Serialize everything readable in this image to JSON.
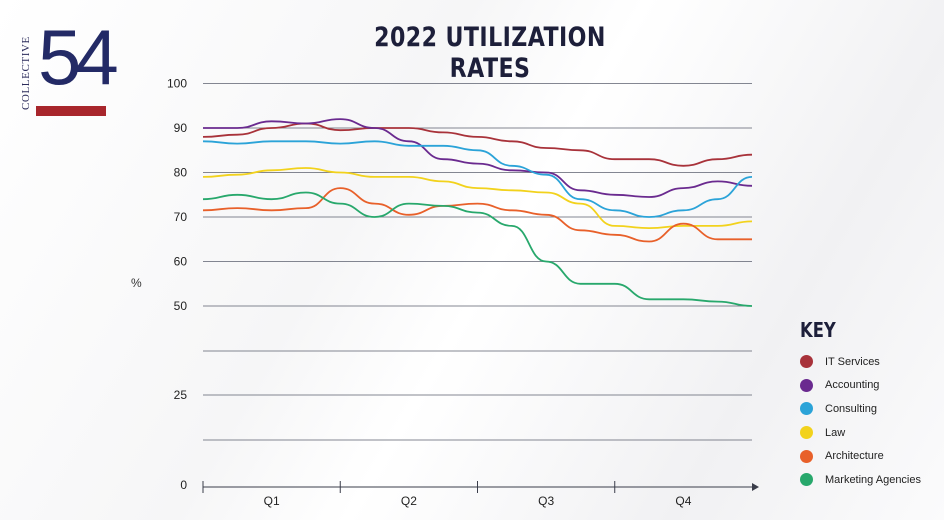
{
  "brand": {
    "word": "COLLECTIVE",
    "number": "54"
  },
  "chart_data": {
    "type": "line",
    "title": "2022 UTILIZATION RATES",
    "xlabel": "",
    "ylabel": "%",
    "y_ticks": [
      100,
      90,
      80,
      70,
      60,
      50,
      25,
      0
    ],
    "y_scale": "piecewise: 50-100 linear upper band, 0-50 compressed lower band",
    "ylim": [
      0,
      100
    ],
    "x_categories": [
      "Q1",
      "Q2",
      "Q3",
      "Q4"
    ],
    "grid": true,
    "legend_title": "KEY",
    "legend_position": "bottom-right",
    "x_positions": [
      0.0,
      0.25,
      0.5,
      0.75,
      1.0,
      1.25,
      1.5,
      1.75,
      2.0,
      2.25,
      2.5,
      2.75,
      3.0,
      3.25,
      3.5,
      3.75,
      4.0
    ],
    "series": [
      {
        "name": "IT Services",
        "color": "#a8323a",
        "values": [
          88,
          88.5,
          90,
          91,
          89.5,
          90,
          90,
          89,
          88,
          87,
          85.5,
          85,
          83,
          83,
          81.5,
          83,
          84
        ]
      },
      {
        "name": "Accounting",
        "color": "#6a2a8f",
        "values": [
          90,
          90,
          91.5,
          91,
          92,
          90,
          87,
          83,
          82,
          80.5,
          80,
          76,
          75,
          74.5,
          76.5,
          78,
          77
        ]
      },
      {
        "name": "Consulting",
        "color": "#2ba3d8",
        "values": [
          87,
          86.5,
          87,
          87,
          86.5,
          87,
          86,
          86,
          85,
          81.5,
          79.5,
          74,
          71.5,
          70,
          71.5,
          74,
          79
        ]
      },
      {
        "name": "Law",
        "color": "#f2d21c",
        "values": [
          79,
          79.5,
          80.5,
          81,
          80,
          79,
          79,
          78,
          76.5,
          76,
          75.5,
          73,
          68,
          67.5,
          68,
          68,
          69
        ]
      },
      {
        "name": "Architecture",
        "color": "#e8602a",
        "values": [
          71.5,
          72,
          71.5,
          72,
          76.5,
          73,
          70.5,
          72.5,
          73,
          71.5,
          70.5,
          67,
          66,
          64.5,
          68.5,
          65,
          65
        ]
      },
      {
        "name": "Marketing Agencies",
        "color": "#28a86c",
        "values": [
          74,
          75,
          74,
          75.5,
          73,
          70,
          73,
          72.5,
          71,
          68,
          60,
          55,
          55,
          51.5,
          51.5,
          51,
          50
        ]
      }
    ]
  }
}
